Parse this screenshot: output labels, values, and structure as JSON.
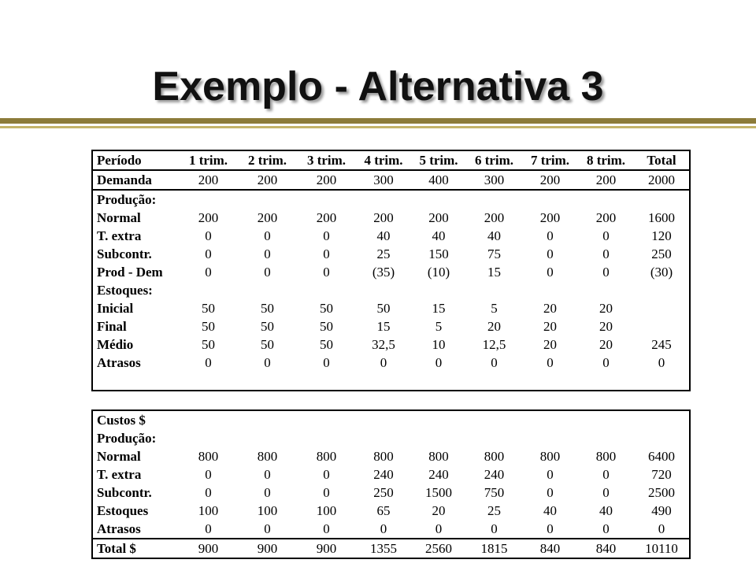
{
  "title": "Exemplo - Alternativa 3",
  "header": [
    "Período",
    "1 trim.",
    "2 trim.",
    "3 trim.",
    "4 trim.",
    "5 trim.",
    "6 trim.",
    "7 trim.",
    "8 trim.",
    "Total"
  ],
  "demand": [
    "Demanda",
    "200",
    "200",
    "200",
    "300",
    "400",
    "300",
    "200",
    "200",
    "2000"
  ],
  "production_block": [
    [
      "Produção:",
      "",
      "",
      "",
      "",
      "",
      "",
      "",
      "",
      ""
    ],
    [
      "Normal",
      "200",
      "200",
      "200",
      "200",
      "200",
      "200",
      "200",
      "200",
      "1600"
    ],
    [
      "T. extra",
      "0",
      "0",
      "0",
      "40",
      "40",
      "40",
      "0",
      "0",
      "120"
    ],
    [
      "Subcontr.",
      "0",
      "0",
      "0",
      "25",
      "150",
      "75",
      "0",
      "0",
      "250"
    ],
    [
      "Prod - Dem",
      "0",
      "0",
      "0",
      "(35)",
      "(10)",
      "15",
      "0",
      "0",
      "(30)"
    ],
    [
      "Estoques:",
      "",
      "",
      "",
      "",
      "",
      "",
      "",
      "",
      ""
    ],
    [
      "Inicial",
      "50",
      "50",
      "50",
      "50",
      "15",
      "5",
      "20",
      "20",
      ""
    ],
    [
      "Final",
      "50",
      "50",
      "50",
      "15",
      "5",
      "20",
      "20",
      "20",
      ""
    ],
    [
      "Médio",
      "50",
      "50",
      "50",
      "32,5",
      "10",
      "12,5",
      "20",
      "20",
      "245"
    ],
    [
      "Atrasos",
      "0",
      "0",
      "0",
      "0",
      "0",
      "0",
      "0",
      "0",
      "0"
    ]
  ],
  "costs_block": [
    [
      "Custos $",
      "",
      "",
      "",
      "",
      "",
      "",
      "",
      "",
      ""
    ],
    [
      "Produção:",
      "",
      "",
      "",
      "",
      "",
      "",
      "",
      "",
      ""
    ],
    [
      "Normal",
      "800",
      "800",
      "800",
      "800",
      "800",
      "800",
      "800",
      "800",
      "6400"
    ],
    [
      "T. extra",
      "0",
      "0",
      "0",
      "240",
      "240",
      "240",
      "0",
      "0",
      "720"
    ],
    [
      "Subcontr.",
      "0",
      "0",
      "0",
      "250",
      "1500",
      "750",
      "0",
      "0",
      "2500"
    ],
    [
      "Estoques",
      "100",
      "100",
      "100",
      "65",
      "20",
      "25",
      "40",
      "40",
      "490"
    ],
    [
      "Atrasos",
      "0",
      "0",
      "0",
      "0",
      "0",
      "0",
      "0",
      "0",
      "0"
    ]
  ],
  "total": [
    "Total $",
    "900",
    "900",
    "900",
    "1355",
    "2560",
    "1815",
    "840",
    "840",
    "10110"
  ]
}
